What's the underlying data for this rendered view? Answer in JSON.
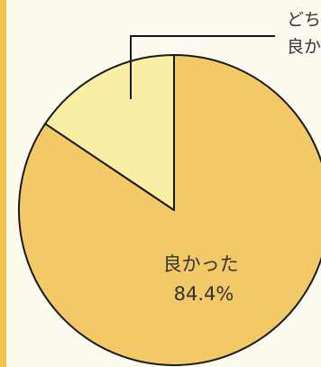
{
  "chart_data": {
    "type": "pie",
    "slices": [
      {
        "label_lines": [
          "良かった",
          "84.4%"
        ],
        "value": 84.4,
        "color": "#f3c968"
      },
      {
        "label_lines": [
          "どち",
          "良か"
        ],
        "value": 15.6,
        "color": "#f9eea3"
      }
    ]
  },
  "colors": {
    "left_bar": "#f4c14a",
    "background": "#fdfaef",
    "outline": "#1a1a1a"
  }
}
